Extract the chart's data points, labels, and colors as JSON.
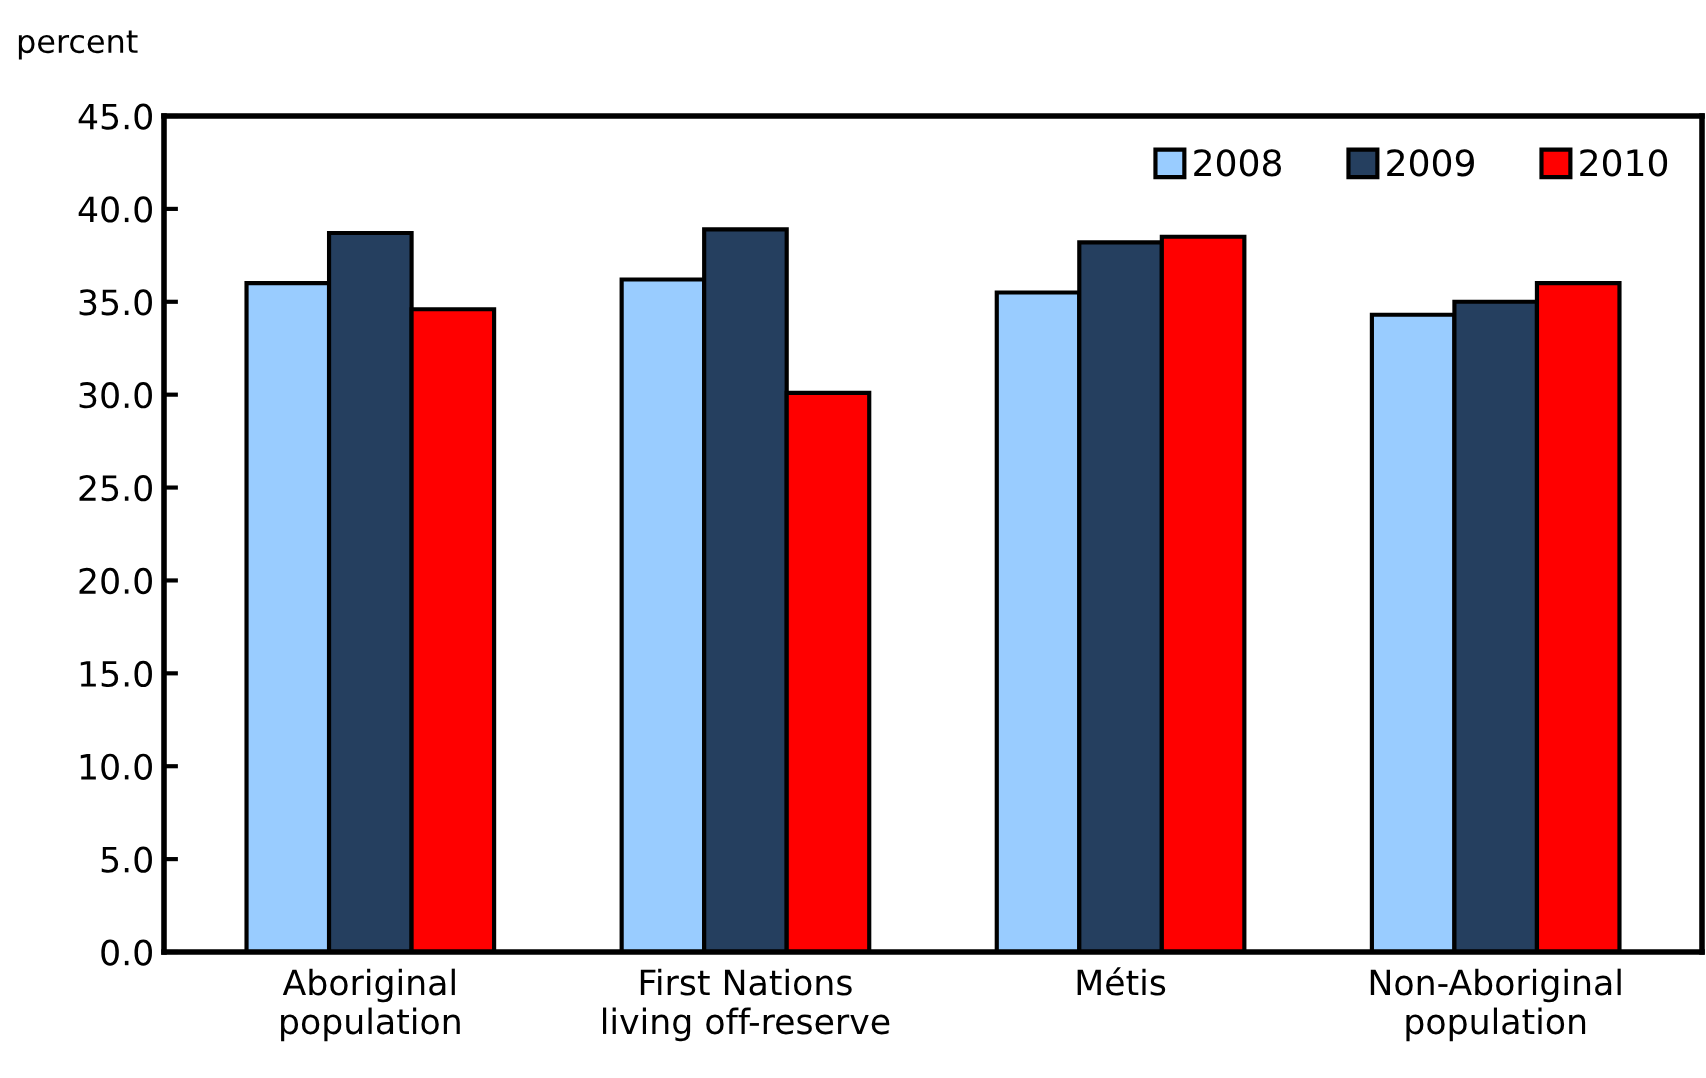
{
  "chart_data": {
    "type": "bar",
    "ylabel": "percent",
    "categories": [
      "Aboriginal\npopulation",
      "First Nations\nliving off-reserve",
      "Métis",
      "Non-Aboriginal\npopulation"
    ],
    "series": [
      {
        "name": "2008",
        "color": "#99ccff",
        "values": [
          36.0,
          36.2,
          35.5,
          34.3
        ]
      },
      {
        "name": "2009",
        "color": "#253f5f",
        "values": [
          38.7,
          38.9,
          38.2,
          35.0
        ]
      },
      {
        "name": "2010",
        "color": "#ff0000",
        "values": [
          34.6,
          30.1,
          38.5,
          36.0
        ]
      }
    ],
    "ylim": [
      0,
      45
    ],
    "yticks": [
      {
        "value": 0,
        "label": "0.0"
      },
      {
        "value": 5,
        "label": "5.0"
      },
      {
        "value": 10,
        "label": "10.0"
      },
      {
        "value": 15,
        "label": "15.0"
      },
      {
        "value": 20,
        "label": "20.0"
      },
      {
        "value": 25,
        "label": "25.0"
      },
      {
        "value": 30,
        "label": "30.0"
      },
      {
        "value": 35,
        "label": "35.0"
      },
      {
        "value": 40,
        "label": "40.0"
      },
      {
        "value": 45,
        "label": "45.0"
      }
    ],
    "grid": false,
    "legend": "top right"
  }
}
